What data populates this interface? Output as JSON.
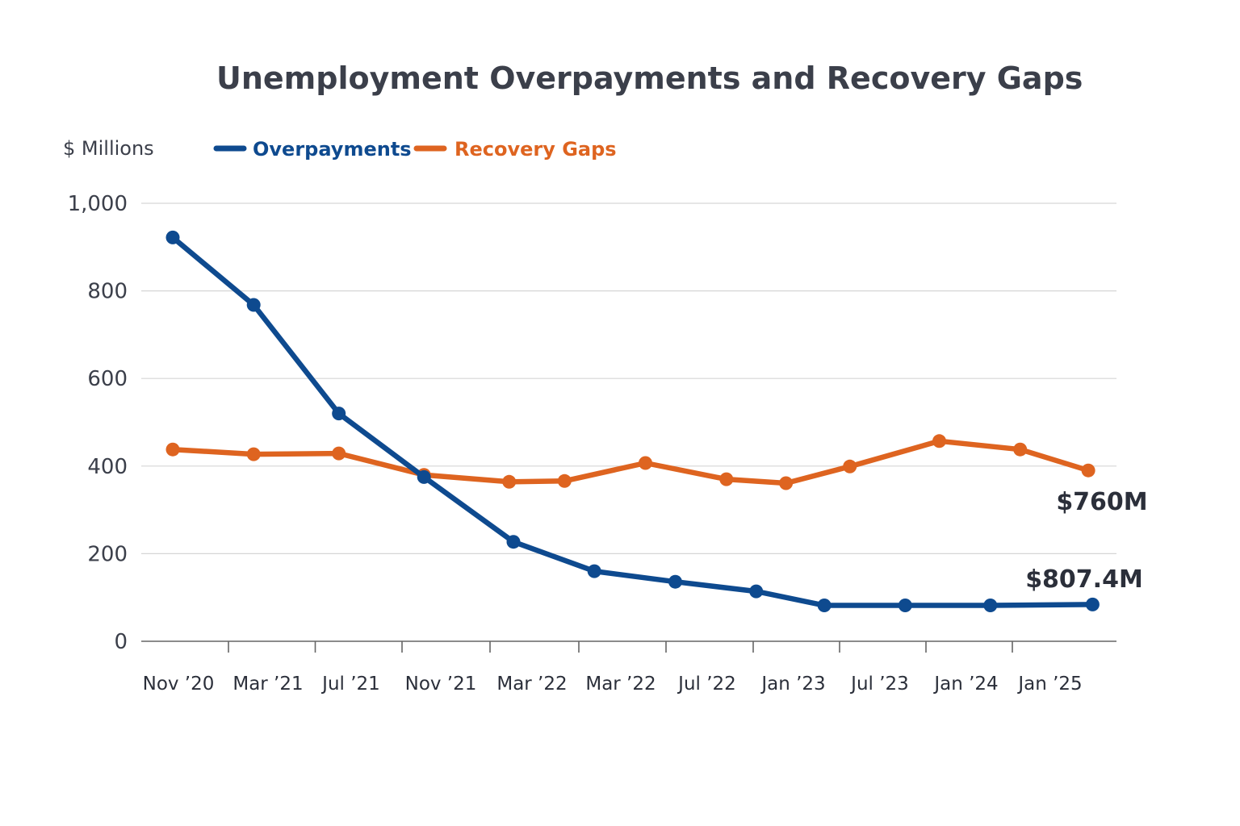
{
  "chart_data": {
    "type": "line",
    "title": "Unemployment Overpayments and Recovery Gaps",
    "ylabel": "$ Millions",
    "xlabel": "",
    "ylim": [
      0,
      1000
    ],
    "yticks": [
      0,
      200,
      400,
      600,
      800,
      1000
    ],
    "ytick_labels": [
      "0",
      "200",
      "400",
      "600",
      "800",
      "1,000"
    ],
    "grid": true,
    "legend_position": "top-left",
    "categories": [
      "Nov ’20",
      "Mar ’21",
      "Jul ’21",
      "Nov ’21",
      "Mar ’22",
      "Mar ’22",
      "Jul ’22",
      "Jan ’23",
      "Jul ’23",
      "Jan ’24",
      "Jan ’25"
    ],
    "series": [
      {
        "name": "Overpayments",
        "color": "#0e4a8f",
        "x": [
          0.0,
          0.95,
          1.95,
          2.95,
          4.0,
          4.95,
          5.9,
          6.85,
          7.65,
          8.6,
          9.6,
          10.8
        ],
        "values": [
          922,
          768,
          520,
          375,
          227,
          160,
          136,
          114,
          82,
          82,
          82,
          84
        ]
      },
      {
        "name": "Recovery Gaps",
        "color": "#de6420",
        "x": [
          0.0,
          0.95,
          1.95,
          2.95,
          3.95,
          4.6,
          5.55,
          6.5,
          7.2,
          7.95,
          9.0,
          9.95,
          10.75
        ],
        "values": [
          438,
          427,
          429,
          380,
          364,
          366,
          407,
          370,
          361,
          399,
          457,
          438,
          390
        ]
      }
    ],
    "annotations": [
      {
        "text": "$760M",
        "series": "Recovery Gaps"
      },
      {
        "text": "$807.4M",
        "series": "Overpayments"
      }
    ]
  }
}
